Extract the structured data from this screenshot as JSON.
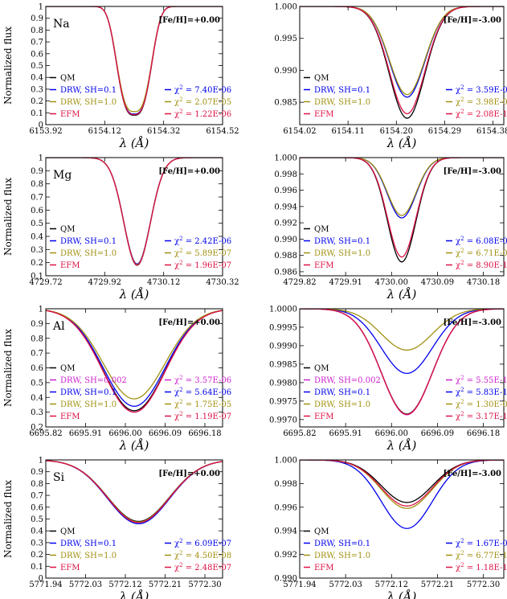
{
  "chart_data": [
    {
      "type": "line",
      "element": "Na",
      "metallicity": "[Fe/H]=+0.00",
      "ylabel": "Normalized flux",
      "xlabel": "λ (Å)",
      "xlim": [
        6153.92,
        6154.52
      ],
      "ylim": [
        0.0,
        1.0
      ],
      "xticks": [
        "6153.92",
        "6154.12",
        "6154.32",
        "6154.52"
      ],
      "yticks": [
        "0",
        "0.1",
        "0.2",
        "0.3",
        "0.4",
        "0.5",
        "0.6",
        "0.7",
        "0.8",
        "0.9",
        "1"
      ],
      "line_center": 6154.22,
      "line_width": 0.055,
      "line_shape": 3,
      "series": [
        {
          "name": "QM",
          "color": "#000000",
          "depth": 0.92
        },
        {
          "name": "DRW, SH=0.1",
          "color": "#0000ee",
          "depth": 0.91,
          "chi2": "7.40E-06"
        },
        {
          "name": "DRW, SH=1.0",
          "color": "#a09010",
          "depth": 0.89,
          "chi2": "2.07E-05"
        },
        {
          "name": "EFM",
          "color": "#dd1144",
          "depth": 0.915,
          "chi2": "1.22E-06"
        }
      ]
    },
    {
      "type": "line",
      "element": "",
      "metallicity": "[Fe/H]=-3.00",
      "ylabel": "",
      "xlabel": "λ (Å)",
      "xlim": [
        6154.02,
        6154.4
      ],
      "ylim": [
        0.9815,
        1.0
      ],
      "xticks": [
        "6154.02",
        "6154.11",
        "6154.20",
        "6154.29",
        "6154.38"
      ],
      "yticks": [
        "0.985",
        "0.990",
        "0.995",
        "1.000"
      ],
      "line_center": 6154.22,
      "line_width": 0.033,
      "line_shape": 2,
      "series": [
        {
          "name": "QM",
          "color": "#000000",
          "depth": 0.0175
        },
        {
          "name": "DRW, SH=0.1",
          "color": "#0000ee",
          "depth": 0.0142,
          "chi2": "3.59E-09"
        },
        {
          "name": "DRW, SH=1.0",
          "color": "#a09010",
          "depth": 0.0138,
          "chi2": "3.98E-09"
        },
        {
          "name": "EFM",
          "color": "#dd1144",
          "depth": 0.0168,
          "chi2": "2.08E-10"
        }
      ]
    },
    {
      "type": "line",
      "element": "Mg",
      "metallicity": "[Fe/H]=+0.00",
      "ylabel": "Normalized flux",
      "xlabel": "λ (Å)",
      "xlim": [
        4729.72,
        4730.32
      ],
      "ylim": [
        0.1,
        1.0
      ],
      "xticks": [
        "4729.72",
        "4729.92",
        "4730.12",
        "4730.32"
      ],
      "yticks": [
        "0.1",
        "0.2",
        "0.3",
        "0.4",
        "0.5",
        "0.6",
        "0.7",
        "0.8",
        "0.9",
        "1"
      ],
      "line_center": 4730.03,
      "line_width": 0.045,
      "line_shape": 2,
      "series": [
        {
          "name": "QM",
          "color": "#000000",
          "depth": 0.82
        },
        {
          "name": "DRW, SH=0.1",
          "color": "#0000ee",
          "depth": 0.81,
          "chi2": "2.42E-06"
        },
        {
          "name": "DRW, SH=1.0",
          "color": "#a09010",
          "depth": 0.815,
          "chi2": "5.89E-07"
        },
        {
          "name": "EFM",
          "color": "#dd1144",
          "depth": 0.818,
          "chi2": "1.96E-07"
        }
      ]
    },
    {
      "type": "line",
      "element": "",
      "metallicity": "[Fe/H]=-3.00",
      "ylabel": "",
      "xlabel": "λ (Å)",
      "xlim": [
        4729.82,
        4730.22
      ],
      "ylim": [
        0.9855,
        1.0
      ],
      "xticks": [
        "4729.82",
        "4729.91",
        "4730.00",
        "4730.09",
        "4730.18"
      ],
      "yticks": [
        "0.986",
        "0.988",
        "0.990",
        "0.992",
        "0.994",
        "0.996",
        "0.998",
        "1.000"
      ],
      "line_center": 4730.02,
      "line_width": 0.028,
      "line_shape": 2,
      "series": [
        {
          "name": "QM",
          "color": "#000000",
          "depth": 0.0128
        },
        {
          "name": "DRW, SH=0.1",
          "color": "#0000ee",
          "depth": 0.0074,
          "chi2": "6.08E-09"
        },
        {
          "name": "DRW, SH=1.0",
          "color": "#a09010",
          "depth": 0.0071,
          "chi2": "6.71E-09"
        },
        {
          "name": "EFM",
          "color": "#dd1144",
          "depth": 0.0122,
          "chi2": "8.90E-11"
        }
      ]
    },
    {
      "type": "line",
      "element": "Al",
      "metallicity": "[Fe/H]=+0.00",
      "ylabel": "Normalized flux",
      "xlabel": "λ (Å)",
      "xlim": [
        6695.82,
        6696.22
      ],
      "ylim": [
        0.2,
        1.0
      ],
      "xticks": [
        "6695.82",
        "6695.91",
        "6696.00",
        "6696.09",
        "6696.18"
      ],
      "yticks": [
        "0.2",
        "0.3",
        "0.4",
        "0.5",
        "0.6",
        "0.7",
        "0.8",
        "0.9",
        "1"
      ],
      "line_center": 6696.02,
      "line_width": 0.07,
      "line_shape": 2,
      "series": [
        {
          "name": "QM",
          "color": "#000000",
          "depth": 0.69
        },
        {
          "name": "DRW, SH=0.002",
          "color": "#cc22cc",
          "depth": 0.7,
          "chi2": "3.57E-06"
        },
        {
          "name": "DRW, SH=0.1",
          "color": "#0000ee",
          "depth": 0.66,
          "chi2": "5.64E-06"
        },
        {
          "name": "DRW, SH=1.0",
          "color": "#a09010",
          "depth": 0.61,
          "chi2": "1.75E-05"
        },
        {
          "name": "EFM",
          "color": "#dd1144",
          "depth": 0.7,
          "chi2": "1.19E-07"
        }
      ]
    },
    {
      "type": "line",
      "element": "",
      "metallicity": "[Fe/H]=-3.00",
      "ylabel": "",
      "xlabel": "λ (Å)",
      "xlim": [
        6695.82,
        6696.22
      ],
      "ylim": [
        0.9968,
        1.0
      ],
      "xticks": [
        "6695.82",
        "6695.91",
        "6696.00",
        "6696.09",
        "6696.18"
      ],
      "yticks": [
        "0.9970",
        "0.9975",
        "0.9980",
        "0.9985",
        "0.9990",
        "0.9995",
        "1.0000"
      ],
      "line_center": 6696.03,
      "line_width": 0.05,
      "line_shape": 2,
      "series": [
        {
          "name": "QM",
          "color": "#000000",
          "depth": 0.00285
        },
        {
          "name": "DRW, SH=0.002",
          "color": "#cc22cc",
          "depth": 0.00287,
          "chi2": "5.55E-10"
        },
        {
          "name": "DRW, SH=0.1",
          "color": "#0000ee",
          "depth": 0.00175,
          "chi2": "5.83E-10"
        },
        {
          "name": "DRW, SH=1.0",
          "color": "#a09010",
          "depth": 0.00112,
          "chi2": "1.30E-09"
        },
        {
          "name": "EFM",
          "color": "#dd1144",
          "depth": 0.00286,
          "chi2": "3.17E-13"
        }
      ]
    },
    {
      "type": "line",
      "element": "Si",
      "metallicity": "[Fe/H]=+0.00",
      "ylabel": "Normalized flux",
      "xlabel": "λ (Å)",
      "xlim": [
        5771.94,
        5772.34
      ],
      "ylim": [
        0.0,
        1.0
      ],
      "xticks": [
        "5771.94",
        "5772.03",
        "5772.12",
        "5772.21",
        "5772.30"
      ],
      "yticks": [
        "0",
        "0.1",
        "0.2",
        "0.3",
        "0.4",
        "0.5",
        "0.6",
        "0.7",
        "0.8",
        "0.9",
        "1"
      ],
      "line_center": 5772.15,
      "line_width": 0.07,
      "line_shape": 2,
      "series": [
        {
          "name": "QM",
          "color": "#000000",
          "depth": 0.52
        },
        {
          "name": "DRW, SH=0.1",
          "color": "#0000ee",
          "depth": 0.54,
          "chi2": "6.09E-07"
        },
        {
          "name": "DRW, SH=1.0",
          "color": "#a09010",
          "depth": 0.525,
          "chi2": "4.50E-08"
        },
        {
          "name": "EFM",
          "color": "#dd1144",
          "depth": 0.53,
          "chi2": "2.48E-07"
        }
      ]
    },
    {
      "type": "line",
      "element": "",
      "metallicity": "[Fe/H]=-3.00",
      "ylabel": "",
      "xlabel": "λ (Å)",
      "xlim": [
        5771.94,
        5772.34
      ],
      "ylim": [
        0.99,
        1.0
      ],
      "xticks": [
        "5771.94",
        "5772.03",
        "5772.12",
        "5772.21",
        "5772.30"
      ],
      "yticks": [
        "0.990",
        "0.992",
        "0.994",
        "0.996",
        "0.998",
        "1.000"
      ],
      "line_center": 5772.15,
      "line_width": 0.05,
      "line_shape": 2,
      "series": [
        {
          "name": "QM",
          "color": "#000000",
          "depth": 0.0036
        },
        {
          "name": "DRW, SH=0.1",
          "color": "#0000ee",
          "depth": 0.0058,
          "chi2": "1.67E-09"
        },
        {
          "name": "DRW, SH=1.0",
          "color": "#a09010",
          "depth": 0.0041,
          "chi2": "6.77E-11"
        },
        {
          "name": "EFM",
          "color": "#dd1144",
          "depth": 0.0039,
          "chi2": "1.18E-10"
        }
      ]
    }
  ]
}
